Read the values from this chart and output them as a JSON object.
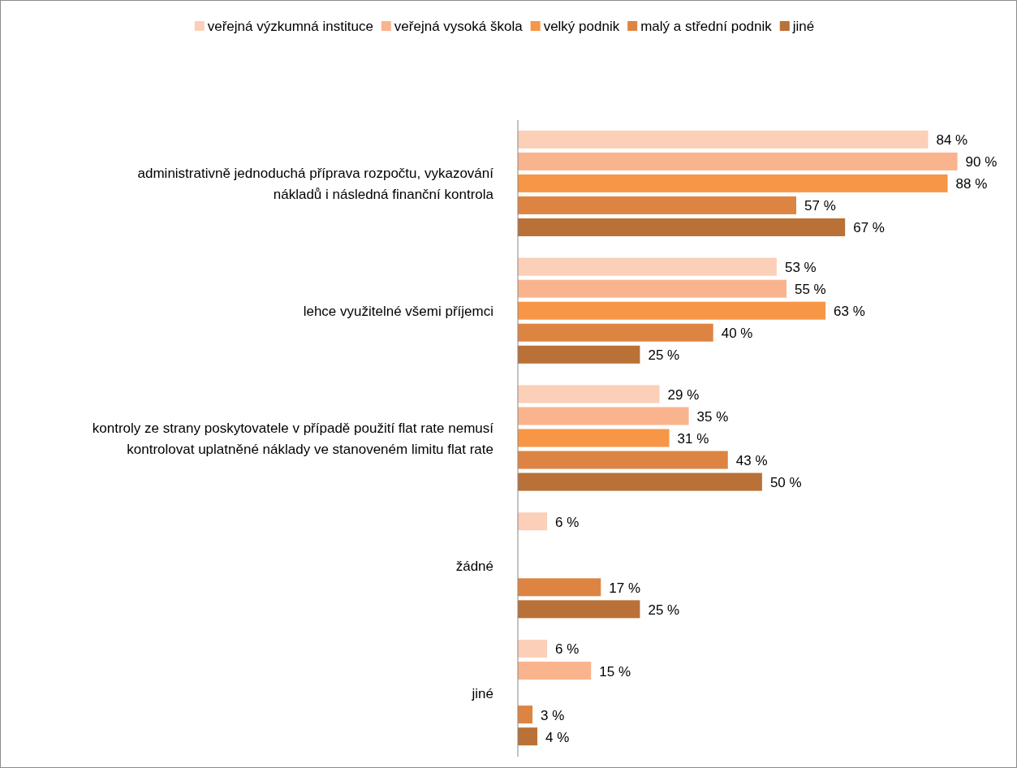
{
  "chart_data": {
    "type": "bar",
    "orientation": "horizontal",
    "legend": "top",
    "categories": [
      "administrativně jednoduchá příprava rozpočtu, vykazování nákladů i následná finanční kontrola",
      "lehce využitelné všemi příjemci",
      "kontroly ze strany poskytovatele v případě použití flat rate nemusí kontrolovat uplatněné náklady ve stanoveném limitu flat rate",
      "žádné",
      "jiné"
    ],
    "series": [
      {
        "name": "veřejná výzkumná instituce",
        "color": "#fbcfb8",
        "values": [
          84,
          53,
          29,
          6,
          6
        ],
        "value_labels": [
          "84 %",
          "53 %",
          "29 %",
          "6 %",
          "6 %"
        ]
      },
      {
        "name": "veřejná vysoká škola",
        "color": "#f9b48e",
        "values": [
          90,
          55,
          35,
          null,
          15
        ],
        "value_labels": [
          "90 %",
          "55 %",
          "35 %",
          null,
          "15 %"
        ]
      },
      {
        "name": "velký podnik",
        "color": "#f79646",
        "values": [
          88,
          63,
          31,
          null,
          null
        ],
        "value_labels": [
          "88 %",
          "63 %",
          "31 %",
          null,
          null
        ]
      },
      {
        "name": "malý a střední podnik",
        "color": "#dd8443",
        "values": [
          57,
          40,
          43,
          17,
          3
        ],
        "value_labels": [
          "57 %",
          "40 %",
          "43 %",
          "17 %",
          "3 %"
        ]
      },
      {
        "name": "jiné",
        "color": "#b97137",
        "values": [
          67,
          25,
          50,
          25,
          4
        ],
        "value_labels": [
          "67 %",
          "25 %",
          "50 %",
          "25 %",
          "4 %"
        ]
      }
    ]
  }
}
